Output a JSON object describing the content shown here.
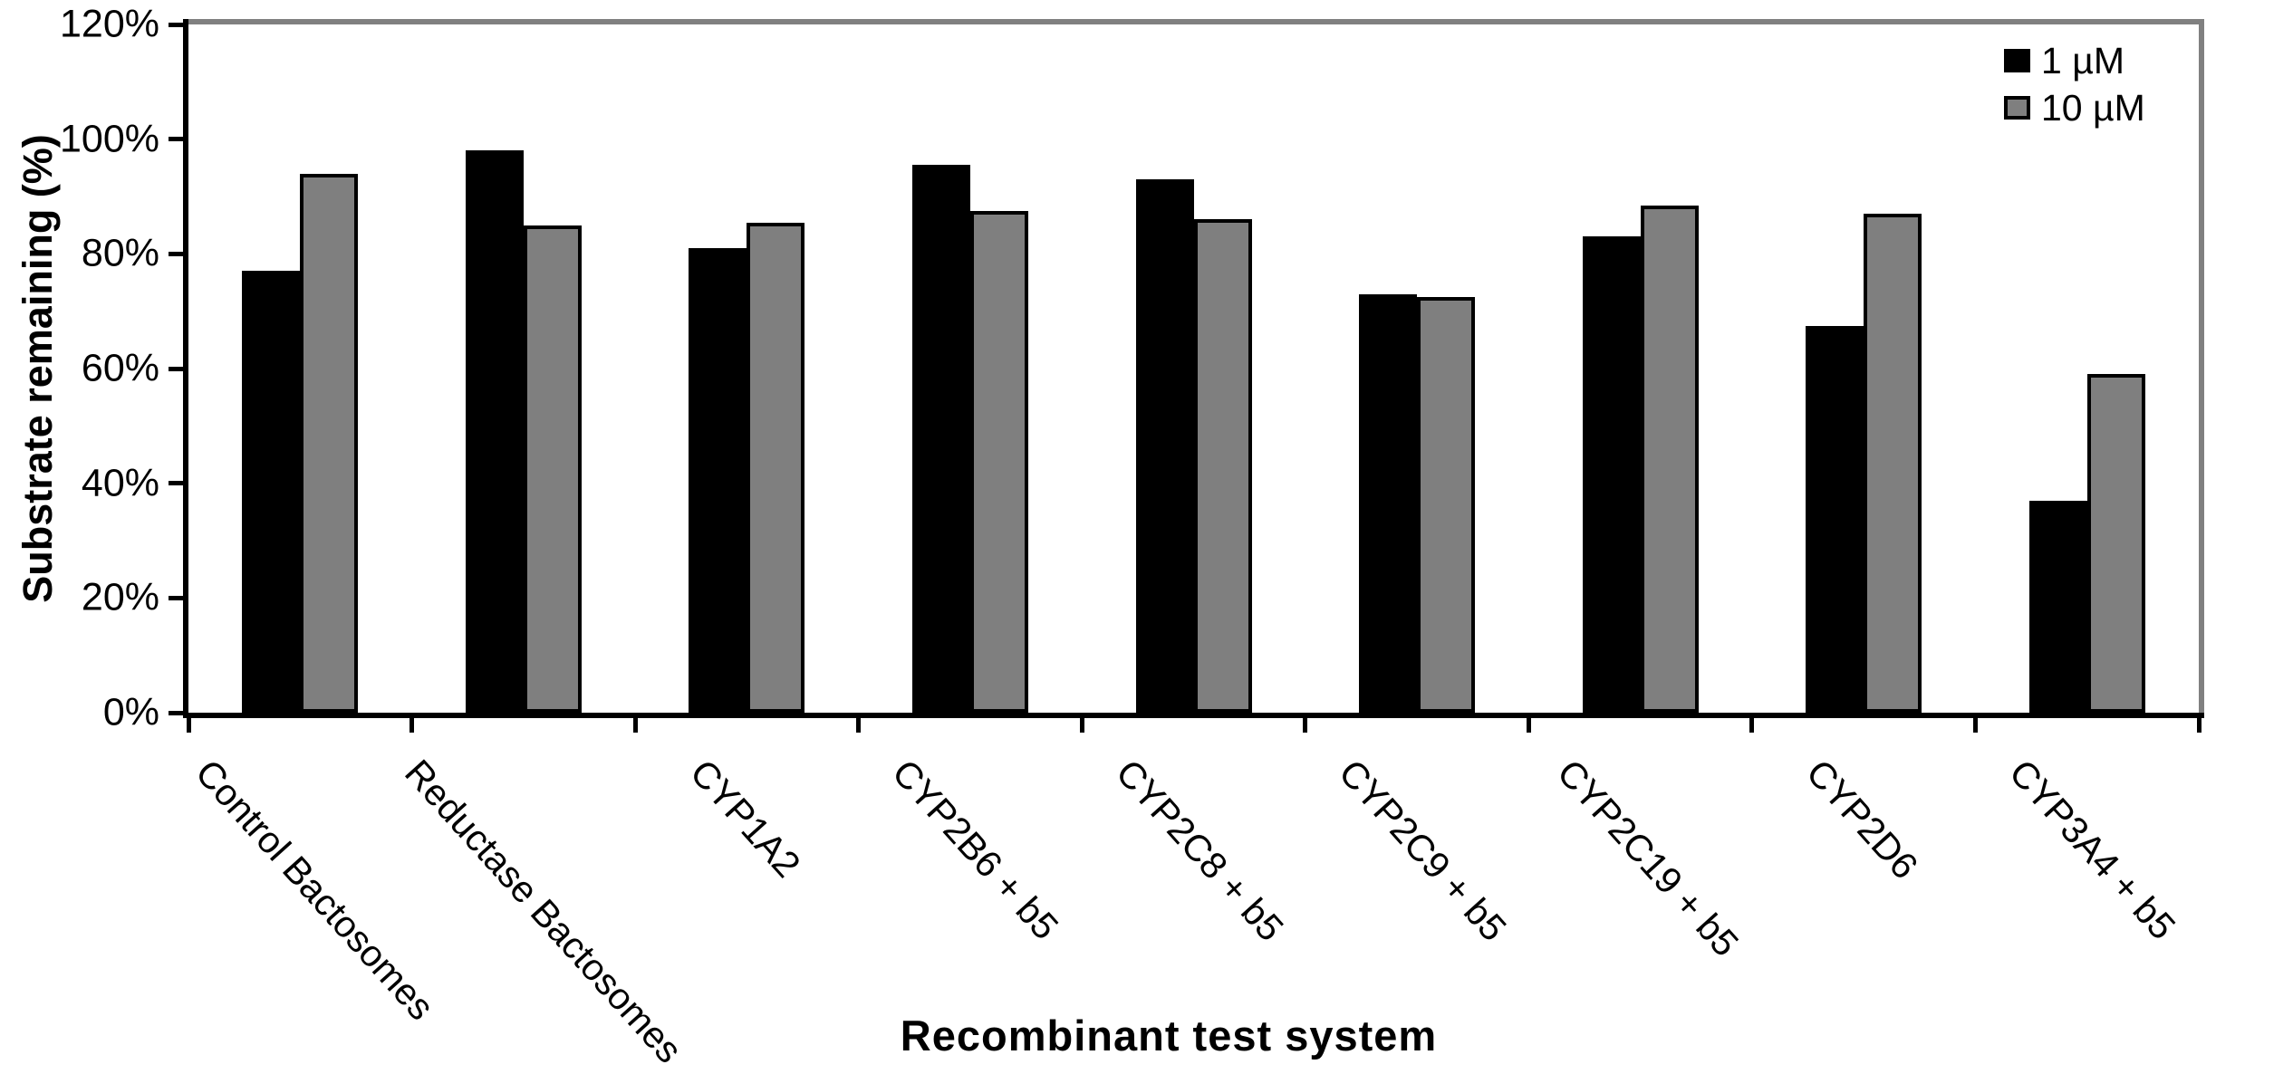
{
  "chart_data": {
    "type": "bar",
    "title": "",
    "xlabel": "Recombinant test system",
    "ylabel": "Substrate remaining (%)",
    "categories": [
      "Control Bactosomes",
      "Reductase Bactosomes",
      "CYP1A2",
      "CYP2B6 + b5",
      "CYP2C8 + b5",
      "CYP2C9 + b5",
      "CYP2C19 + b5",
      "CYP2D6",
      "CYP3A4 + b5"
    ],
    "series": [
      {
        "name": "1 µM",
        "color": "#000000",
        "values": [
          77,
          98,
          81,
          95.5,
          93,
          73,
          83,
          67.5,
          37
        ]
      },
      {
        "name": "10 µM",
        "color": "#7f7f7f",
        "values": [
          94,
          85,
          85.5,
          87.5,
          86,
          72.5,
          88.5,
          87,
          59
        ]
      }
    ],
    "ylim": [
      0,
      120
    ],
    "ytick_step": 20,
    "y_ticks": [
      "0%",
      "20%",
      "40%",
      "60%",
      "80%",
      "100%",
      "120%"
    ],
    "legend_position": "top-right",
    "grid": false,
    "plot_border_color": "#808080",
    "axis_color": "#000000",
    "background_color": "#ffffff"
  }
}
